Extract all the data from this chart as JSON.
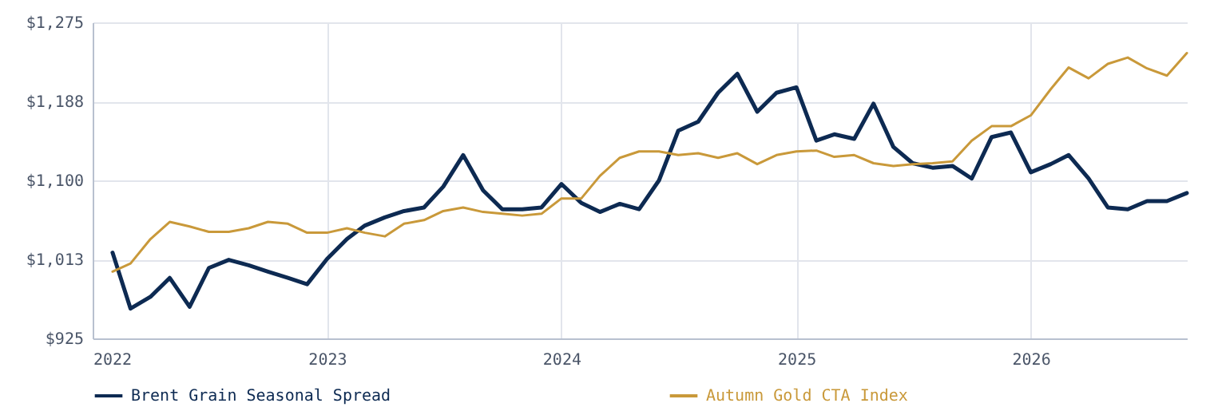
{
  "chart_data": {
    "type": "line",
    "x": [
      "2022-02",
      "2022-03",
      "2022-04",
      "2022-05",
      "2022-06",
      "2022-07",
      "2022-08",
      "2022-09",
      "2022-10",
      "2022-11",
      "2022-12",
      "2023-01",
      "2023-02",
      "2023-03",
      "2023-04",
      "2023-05",
      "2023-06",
      "2023-07",
      "2023-08",
      "2023-09",
      "2023-10",
      "2023-11",
      "2023-12",
      "2024-01",
      "2024-02",
      "2024-03",
      "2024-04",
      "2024-05",
      "2024-06",
      "2024-07",
      "2024-08",
      "2024-09",
      "2024-10",
      "2024-11",
      "2024-12",
      "2025-01",
      "2025-02",
      "2025-03",
      "2025-04",
      "2025-05",
      "2025-06",
      "2025-07",
      "2025-08",
      "2025-09",
      "2025-10",
      "2025-11",
      "2025-12",
      "2026-01",
      "2026-02",
      "2026-03",
      "2026-04",
      "2026-05",
      "2026-06",
      "2026-07",
      "2026-08",
      "2026-09"
    ],
    "series": [
      {
        "name": "Brent Grain Seasonal Spread",
        "color": "#0d2a52",
        "values": [
          1020,
          958,
          971,
          992,
          960,
          1003,
          1012,
          1006,
          999,
          992,
          985,
          1013,
          1035,
          1050,
          1059,
          1066,
          1070,
          1093,
          1128,
          1089,
          1068,
          1068,
          1070,
          1096,
          1075,
          1065,
          1074,
          1068,
          1100,
          1155,
          1165,
          1197,
          1218,
          1176,
          1197,
          1203,
          1144,
          1151,
          1146,
          1185,
          1137,
          1119,
          1114,
          1116,
          1102,
          1148,
          1153,
          1109,
          1118,
          1128,
          1102,
          1070,
          1068,
          1077,
          1077,
          1086
        ]
      },
      {
        "name": "Autumn Gold CTA Index",
        "color": "#c9993a",
        "values": [
          999,
          1008,
          1035,
          1054,
          1049,
          1043,
          1043,
          1047,
          1054,
          1052,
          1042,
          1042,
          1047,
          1042,
          1038,
          1052,
          1056,
          1066,
          1070,
          1065,
          1063,
          1061,
          1063,
          1080,
          1080,
          1105,
          1125,
          1132,
          1132,
          1128,
          1130,
          1125,
          1130,
          1118,
          1128,
          1132,
          1133,
          1126,
          1128,
          1119,
          1116,
          1118,
          1119,
          1121,
          1144,
          1160,
          1160,
          1172,
          1201,
          1225,
          1213,
          1229,
          1236,
          1224,
          1216,
          1241
        ]
      }
    ],
    "xlim": [
      "2022",
      "2026-09"
    ],
    "xticks": [
      "2022",
      "2023",
      "2024",
      "2025",
      "2026"
    ],
    "ylim": [
      925,
      1275
    ],
    "yticks": [
      {
        "value": 925,
        "label": "$925"
      },
      {
        "value": 1012.5,
        "label": "$1,013"
      },
      {
        "value": 1100,
        "label": "$1,100"
      },
      {
        "value": 1187.5,
        "label": "$1,188"
      },
      {
        "value": 1275,
        "label": "$1,275"
      }
    ],
    "grid": true,
    "legend": "bottom"
  }
}
